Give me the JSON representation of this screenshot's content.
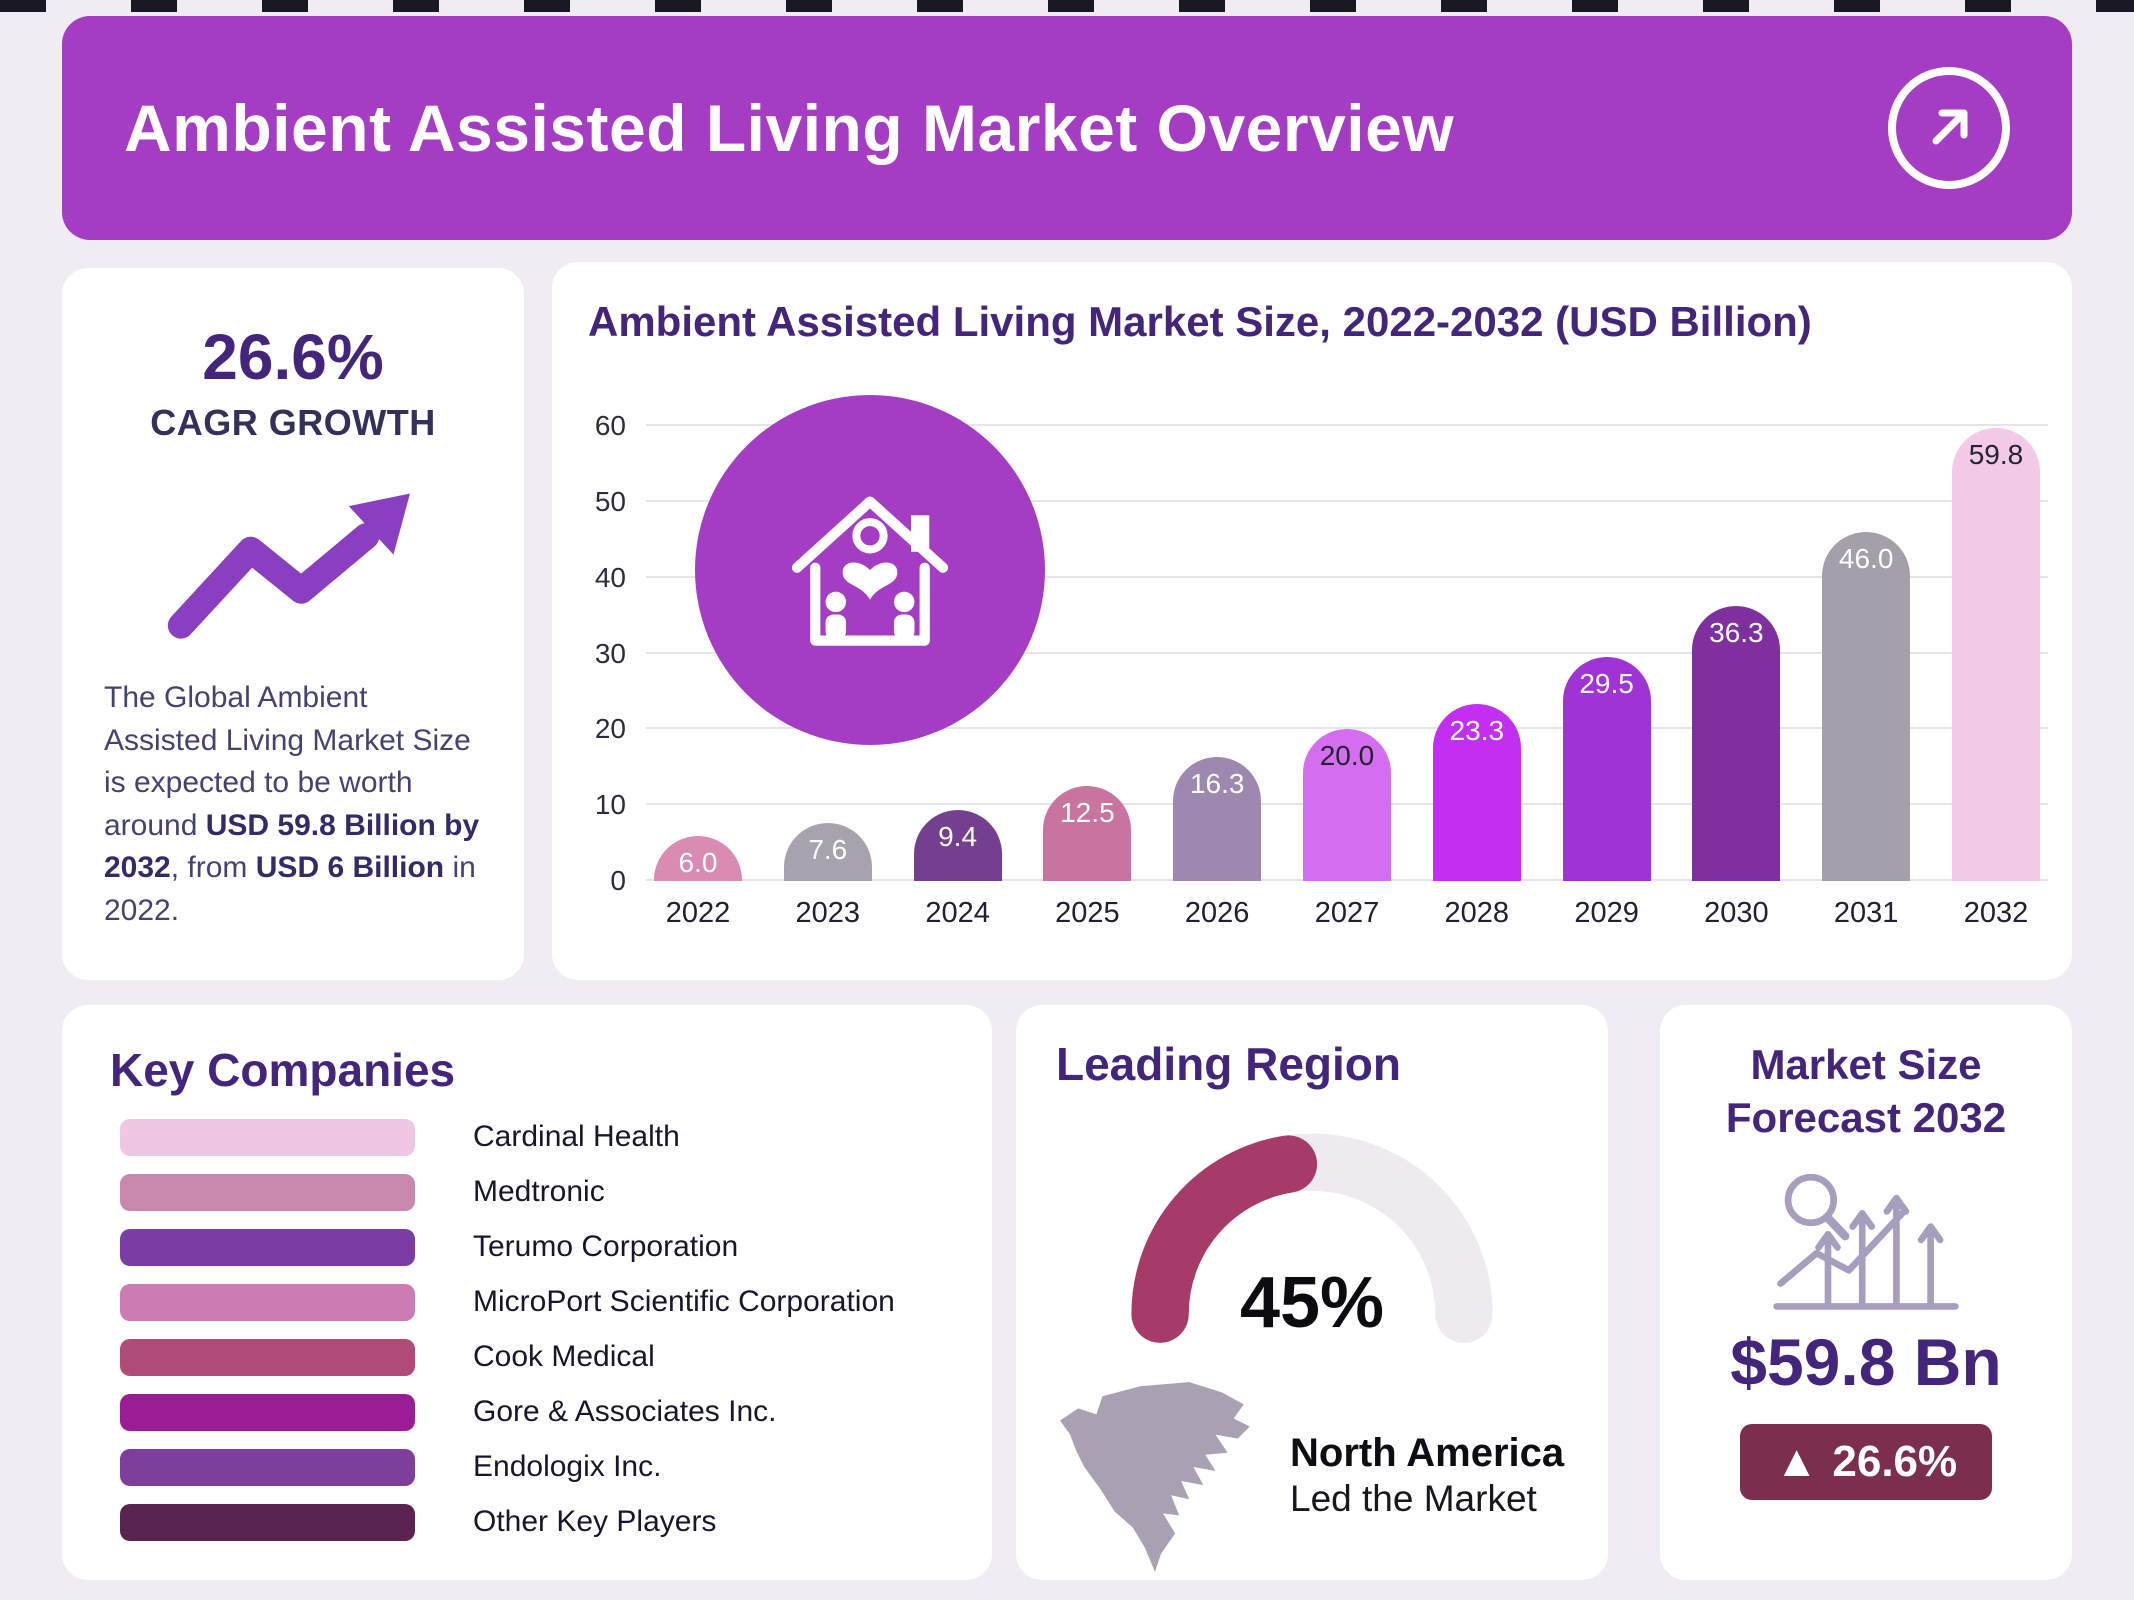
{
  "header": {
    "title": "Ambient Assisted Living Market Overview"
  },
  "cagr_card": {
    "value": "26.6%",
    "label": "CAGR GROWTH",
    "description": [
      {
        "text": "The Global Ambient Assisted Living Market Size is expected to be worth around ",
        "bold": false
      },
      {
        "text": "USD 59.8 Billion by 2032",
        "bold": true
      },
      {
        "text": ", from ",
        "bold": false
      },
      {
        "text": "USD 6 Billion",
        "bold": true
      },
      {
        "text": " in 2022.",
        "bold": false
      }
    ]
  },
  "chart_data": {
    "type": "bar",
    "title": "Ambient Assisted Living Market Size, 2022-2032 (USD Billion)",
    "categories": [
      "2022",
      "2023",
      "2024",
      "2025",
      "2026",
      "2027",
      "2028",
      "2029",
      "2030",
      "2031",
      "2032"
    ],
    "values": [
      6.0,
      7.6,
      9.4,
      12.5,
      16.3,
      20.0,
      23.3,
      29.5,
      36.3,
      46.0,
      59.8
    ],
    "value_labels": [
      "6.0",
      "7.6",
      "9.4",
      "12.5",
      "16.3",
      "20.0",
      "23.3",
      "29.5",
      "36.3",
      "46.0",
      "59.8"
    ],
    "bar_colors": [
      "#d98bb1",
      "#a8a2ae",
      "#743f8e",
      "#c9739f",
      "#9d89af",
      "#d36ef0",
      "#c32ff0",
      "#a033d6",
      "#802f9f",
      "#a59fa9",
      "#f2c9e6"
    ],
    "label_colors": [
      "#ffffff",
      "#ffffff",
      "#ffffff",
      "#ffffff",
      "#ffffff",
      "#242430",
      "#ffffff",
      "#ffffff",
      "#ffffff",
      "#ffffff",
      "#242430"
    ],
    "ylim": [
      0,
      60
    ],
    "yticks": [
      0,
      10,
      20,
      30,
      40,
      50,
      60
    ],
    "grid": true,
    "xlabel": "",
    "ylabel": ""
  },
  "key_companies": {
    "title": "Key Companies",
    "items": [
      {
        "name": "Cardinal Health",
        "color": "#efc6e3"
      },
      {
        "name": "Medtronic",
        "color": "#c887ad"
      },
      {
        "name": "Terumo Corporation",
        "color": "#7a3da3"
      },
      {
        "name": "MicroPort Scientific Corporation",
        "color": "#cc7cb0"
      },
      {
        "name": "Cook Medical",
        "color": "#b04a77"
      },
      {
        "name": "Gore & Associates Inc.",
        "color": "#9b1d96"
      },
      {
        "name": "Endologix Inc.",
        "color": "#7d3f9b"
      },
      {
        "name": "Other Key Players",
        "color": "#5a2350"
      }
    ]
  },
  "leading_region": {
    "title": "Leading Region",
    "percent": "45%",
    "percent_value": 45,
    "region": "North America",
    "subtitle": "Led the Market"
  },
  "forecast": {
    "title": "Market Size Forecast 2032",
    "value": "$59.8 Bn",
    "badge_icon": "▲",
    "badge_value": "26.6%"
  },
  "colors": {
    "header_bg": "#a43dc3",
    "heading_text": "#44257c",
    "accent_purple": "#8a3fc0",
    "gauge_fill": "#a63a69",
    "gauge_track": "#edeaf0",
    "badge_bg": "#7c2e4f",
    "page_bg": "#efecf3"
  }
}
